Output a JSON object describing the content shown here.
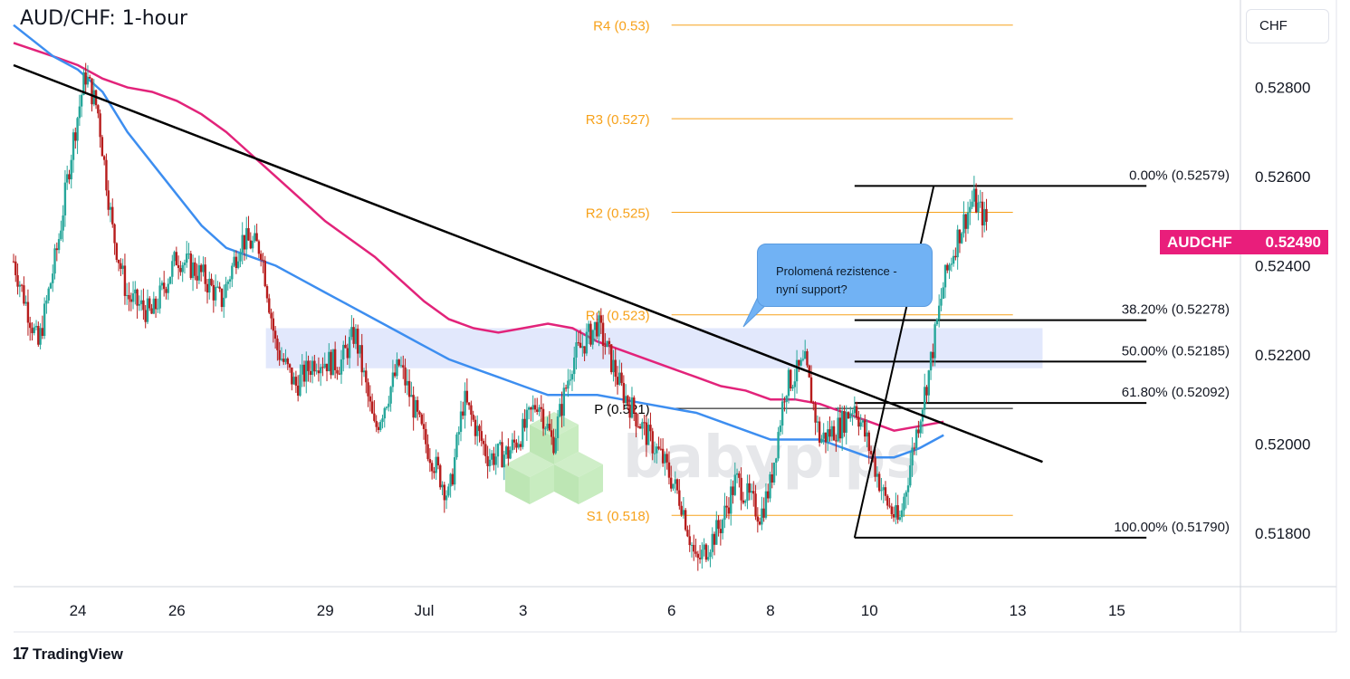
{
  "title": "AUD/CHF: 1-hour",
  "currency": "CHF",
  "symbol": "AUDCHF",
  "last_price": "0.52490",
  "watermark": "babypips",
  "brand": "TradingView",
  "annotation": {
    "line1": "Prolomená rezistence -",
    "line2": "nyní support?"
  },
  "colors": {
    "candle_up": "#26a69a",
    "candle_down": "#b71c1c",
    "sma_fast": "#3d8ef0",
    "sma_slow": "#e2237a",
    "pivot": "#f7a21b",
    "fib": "#000000",
    "zone": "#dde4fb",
    "price_tag": "#e91e7b"
  },
  "chart_data": {
    "type": "candlestick",
    "timeframe": "1-hour",
    "ylim": [
      0.5168,
      0.5298
    ],
    "y_ticks": [
      "0.51800",
      "0.52000",
      "0.52200",
      "0.52400",
      "0.52600",
      "0.52800"
    ],
    "x_ticks": [
      {
        "label": "24",
        "day": 24
      },
      {
        "label": "26",
        "day": 26
      },
      {
        "label": "29",
        "day": 29
      },
      {
        "label": "Jul",
        "day": 31
      },
      {
        "label": "3",
        "day": 33
      },
      {
        "label": "6",
        "day": 36
      },
      {
        "label": "8",
        "day": 38
      },
      {
        "label": "10",
        "day": 40
      },
      {
        "label": "13",
        "day": 43
      },
      {
        "label": "15",
        "day": 45
      }
    ],
    "x_day_range": [
      22.7,
      47.5
    ],
    "pivots": [
      {
        "label": "R4 (0.53)",
        "value": 0.5294
      },
      {
        "label": "R3 (0.527)",
        "value": 0.5273
      },
      {
        "label": "R2 (0.525)",
        "value": 0.5252
      },
      {
        "label": "R1 (0.523)",
        "value": 0.5229
      },
      {
        "label": "P (0.521)",
        "value": 0.5208
      },
      {
        "label": "S1 (0.518)",
        "value": 0.5184
      }
    ],
    "pivot_day_range": [
      36.0,
      42.9
    ],
    "fibonacci": [
      {
        "label": "0.00% (0.52579)",
        "value": 0.52579
      },
      {
        "label": "38.20% (0.52278)",
        "value": 0.52278
      },
      {
        "label": "50.00% (0.52185)",
        "value": 0.52185
      },
      {
        "label": "61.80% (0.52092)",
        "value": 0.52092
      },
      {
        "label": "100.00% (0.51790)",
        "value": 0.5179
      }
    ],
    "fib_day_range": [
      39.7,
      45.6
    ],
    "swing_line": {
      "start": [
        39.7,
        0.5179
      ],
      "end": [
        41.3,
        0.52579
      ]
    },
    "zone": {
      "from_day": 27.8,
      "to_day": 43.5,
      "low": 0.5217,
      "high": 0.5226
    },
    "trendline": {
      "start": [
        22.7,
        0.5285
      ],
      "end": [
        43.5,
        0.5196
      ]
    },
    "sma_fast_points": [
      [
        22.7,
        0.5294
      ],
      [
        23.5,
        0.5287
      ],
      [
        24.0,
        0.5284
      ],
      [
        24.5,
        0.5279
      ],
      [
        25.0,
        0.527
      ],
      [
        25.5,
        0.5263
      ],
      [
        26.0,
        0.5256
      ],
      [
        26.5,
        0.5249
      ],
      [
        27.0,
        0.5244
      ],
      [
        27.5,
        0.5242
      ],
      [
        28.0,
        0.524
      ],
      [
        28.5,
        0.5237
      ],
      [
        29.0,
        0.5234
      ],
      [
        29.5,
        0.5231
      ],
      [
        30.0,
        0.5228
      ],
      [
        30.5,
        0.5225
      ],
      [
        31.0,
        0.5222
      ],
      [
        31.5,
        0.5219
      ],
      [
        32.0,
        0.5217
      ],
      [
        32.5,
        0.5215
      ],
      [
        33.0,
        0.5213
      ],
      [
        33.5,
        0.5211
      ],
      [
        34.0,
        0.5211
      ],
      [
        34.5,
        0.5211
      ],
      [
        35.0,
        0.521
      ],
      [
        35.5,
        0.5209
      ],
      [
        36.0,
        0.5208
      ],
      [
        36.5,
        0.5207
      ],
      [
        37.0,
        0.5205
      ],
      [
        37.5,
        0.5203
      ],
      [
        38.0,
        0.5201
      ],
      [
        38.5,
        0.5201
      ],
      [
        39.0,
        0.5201
      ],
      [
        39.5,
        0.5199
      ],
      [
        40.0,
        0.5197
      ],
      [
        40.5,
        0.5197
      ],
      [
        41.0,
        0.5199
      ],
      [
        41.5,
        0.5202
      ]
    ],
    "sma_slow_points": [
      [
        22.7,
        0.529
      ],
      [
        23.5,
        0.5287
      ],
      [
        24.0,
        0.5285
      ],
      [
        24.5,
        0.5282
      ],
      [
        25.0,
        0.528
      ],
      [
        25.5,
        0.5279
      ],
      [
        26.0,
        0.5277
      ],
      [
        26.5,
        0.5274
      ],
      [
        27.0,
        0.527
      ],
      [
        27.5,
        0.5265
      ],
      [
        28.0,
        0.526
      ],
      [
        28.5,
        0.5255
      ],
      [
        29.0,
        0.525
      ],
      [
        29.5,
        0.5246
      ],
      [
        30.0,
        0.5242
      ],
      [
        30.5,
        0.5237
      ],
      [
        31.0,
        0.5232
      ],
      [
        31.5,
        0.5228
      ],
      [
        32.0,
        0.5226
      ],
      [
        32.5,
        0.5225
      ],
      [
        33.0,
        0.5226
      ],
      [
        33.5,
        0.5227
      ],
      [
        34.0,
        0.5226
      ],
      [
        34.5,
        0.5223
      ],
      [
        35.0,
        0.5221
      ],
      [
        35.5,
        0.5219
      ],
      [
        36.0,
        0.5217
      ],
      [
        36.5,
        0.5215
      ],
      [
        37.0,
        0.5213
      ],
      [
        37.5,
        0.5212
      ],
      [
        38.0,
        0.521
      ],
      [
        38.5,
        0.521
      ],
      [
        39.0,
        0.5209
      ],
      [
        39.5,
        0.5207
      ],
      [
        40.0,
        0.5205
      ],
      [
        40.5,
        0.5203
      ],
      [
        41.0,
        0.5204
      ],
      [
        41.5,
        0.5205
      ]
    ],
    "price_path": [
      [
        22.7,
        0.5241
      ],
      [
        23.2,
        0.5222
      ],
      [
        23.6,
        0.5245
      ],
      [
        23.9,
        0.5268
      ],
      [
        24.15,
        0.5283
      ],
      [
        24.4,
        0.5275
      ],
      [
        24.7,
        0.5248
      ],
      [
        25.0,
        0.5233
      ],
      [
        25.5,
        0.5229
      ],
      [
        26.0,
        0.5242
      ],
      [
        26.5,
        0.5238
      ],
      [
        26.9,
        0.5232
      ],
      [
        27.3,
        0.5246
      ],
      [
        27.7,
        0.5244
      ],
      [
        28.0,
        0.5222
      ],
      [
        28.4,
        0.5213
      ],
      [
        28.8,
        0.5219
      ],
      [
        29.3,
        0.5218
      ],
      [
        29.6,
        0.5225
      ],
      [
        30.0,
        0.5203
      ],
      [
        30.5,
        0.5218
      ],
      [
        31.0,
        0.5201
      ],
      [
        31.5,
        0.5188
      ],
      [
        31.8,
        0.521
      ],
      [
        32.3,
        0.5197
      ],
      [
        32.7,
        0.5198
      ],
      [
        33.0,
        0.5203
      ],
      [
        33.3,
        0.521
      ],
      [
        33.6,
        0.52
      ],
      [
        34.0,
        0.5219
      ],
      [
        34.5,
        0.5227
      ],
      [
        35.0,
        0.5212
      ],
      [
        35.5,
        0.5202
      ],
      [
        35.8,
        0.5197
      ],
      [
        36.2,
        0.5187
      ],
      [
        36.5,
        0.5173
      ],
      [
        37.0,
        0.5182
      ],
      [
        37.3,
        0.5192
      ],
      [
        37.8,
        0.5184
      ],
      [
        38.0,
        0.5191
      ],
      [
        38.3,
        0.5213
      ],
      [
        38.7,
        0.5218
      ],
      [
        39.0,
        0.5201
      ],
      [
        39.4,
        0.5204
      ],
      [
        39.7,
        0.5209
      ],
      [
        40.0,
        0.5199
      ],
      [
        40.3,
        0.5188
      ],
      [
        40.6,
        0.5182
      ],
      [
        40.9,
        0.52
      ],
      [
        41.2,
        0.5216
      ],
      [
        41.5,
        0.5236
      ],
      [
        41.8,
        0.5247
      ],
      [
        42.1,
        0.5255
      ],
      [
        42.4,
        0.5249
      ]
    ]
  }
}
